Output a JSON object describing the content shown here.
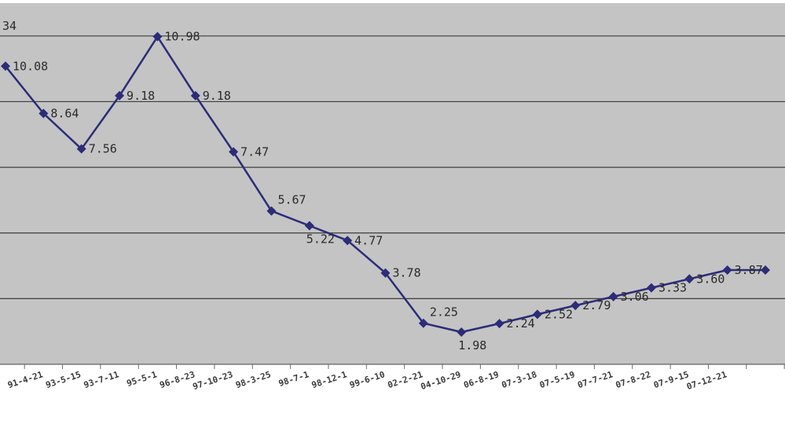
{
  "chart_data": {
    "type": "line",
    "title": "",
    "xlabel": "",
    "ylabel": "",
    "ylim": [
      1,
      12
    ],
    "grid": true,
    "categories": [
      "",
      "91-4-21",
      "93-5-15",
      "93-7-11",
      "95-5-1",
      "96-8-23",
      "97-10-23",
      "98-3-25",
      "98-7-1",
      "98-12-1",
      "99-6-10",
      "02-2-21",
      "04-10-29",
      "06-8-19",
      "07-3-18",
      "07-5-19",
      "07-7-21",
      "07-8-22",
      "07-9-15",
      "07-12-21",
      ""
    ],
    "values": [
      10.08,
      8.64,
      7.56,
      9.18,
      10.98,
      9.18,
      7.47,
      5.67,
      5.22,
      4.77,
      3.78,
      2.25,
      1.98,
      2.24,
      2.52,
      2.79,
      3.06,
      3.33,
      3.6,
      3.87,
      3.87
    ],
    "value_labels": [
      "10.08",
      "8.64",
      "7.56",
      "9.18",
      "10.98",
      "9.18",
      "7.47",
      "5.67",
      "5.22",
      "4.77",
      "3.78",
      "2.25",
      "1.98",
      "2.24",
      "2.52",
      "2.79",
      "3.06",
      "3.33",
      "3.60",
      "3.87",
      ""
    ],
    "partial_value_label": "34",
    "colors": {
      "plot_background": "#c4c4c4",
      "gridline": "#3c3c3c",
      "series": "#2c2c78",
      "text": "#2a2a2a"
    }
  }
}
